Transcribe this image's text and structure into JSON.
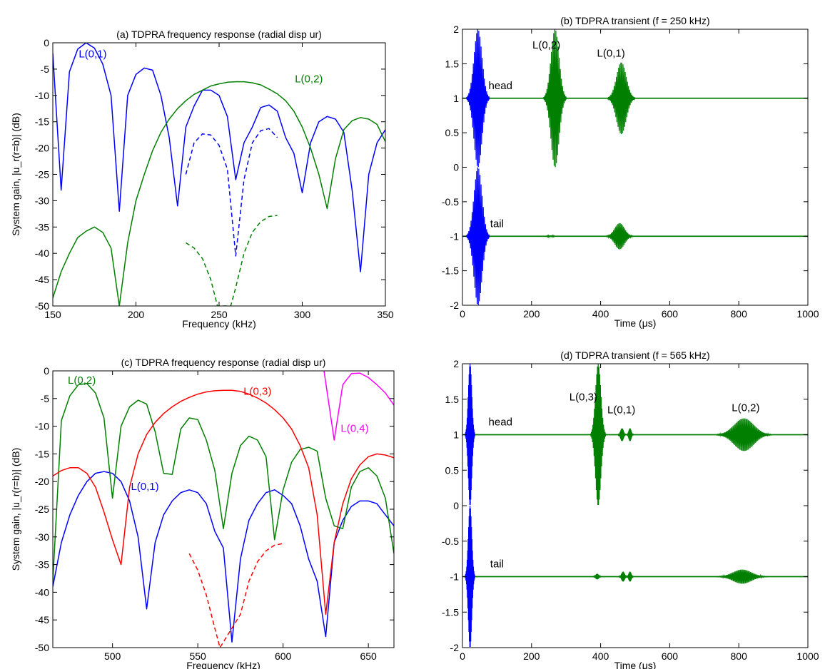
{
  "figure": {
    "background": "#ffffff"
  },
  "chart_data": [
    {
      "id": "a",
      "type": "line",
      "title": "(a) TDPRA frequency response (radial disp ur)",
      "xlabel": "Frequency (kHz)",
      "ylabel": "System gain, |u_r(r=b)| (dB)",
      "xlim": [
        150,
        350
      ],
      "ylim": [
        -50,
        0
      ],
      "xticks": [
        150,
        200,
        250,
        300,
        350
      ],
      "yticks": [
        -50,
        -45,
        -40,
        -35,
        -30,
        -25,
        -20,
        -15,
        -10,
        -5,
        0
      ],
      "grid": false,
      "series": [
        {
          "name": "L(0,1)",
          "color": "#0000ff",
          "dash": false,
          "x": [
            150,
            155,
            160,
            165,
            170,
            175,
            180,
            185,
            190,
            195,
            200,
            205,
            210,
            215,
            220,
            225,
            230,
            235,
            240,
            245,
            250,
            255,
            260,
            265,
            270,
            275,
            280,
            285,
            290,
            295,
            300,
            305,
            310,
            315,
            320,
            325,
            330,
            335,
            340,
            345,
            350
          ],
          "y": [
            -2,
            -28,
            -5.5,
            -1.2,
            0,
            -1,
            -4,
            -10,
            -32,
            -10,
            -6,
            -4.8,
            -5.2,
            -10,
            -18,
            -31,
            -16,
            -12,
            -9,
            -9,
            -10,
            -14,
            -26,
            -19,
            -16,
            -12.3,
            -11.8,
            -13,
            -18,
            -21,
            -28.5,
            -19,
            -15,
            -14,
            -14.5,
            -17,
            -28,
            -43.5,
            -25,
            -19,
            -16.5
          ]
        },
        {
          "name": "L(0,2)",
          "color": "#007f00",
          "dash": false,
          "x": [
            150,
            155,
            160,
            165,
            170,
            175,
            180,
            185,
            190,
            195,
            200,
            205,
            210,
            215,
            220,
            225,
            230,
            235,
            240,
            245,
            250,
            255,
            260,
            265,
            270,
            275,
            280,
            285,
            290,
            295,
            300,
            305,
            310,
            315,
            320,
            325,
            330,
            335,
            340,
            345,
            350
          ],
          "y": [
            -48.5,
            -43.5,
            -40,
            -37,
            -35.8,
            -35,
            -36,
            -39,
            -50,
            -38,
            -30,
            -25,
            -20.5,
            -17,
            -14.5,
            -12.5,
            -11,
            -9.8,
            -9,
            -8.2,
            -7.8,
            -7.5,
            -7.4,
            -7.4,
            -7.6,
            -8,
            -8.8,
            -9.7,
            -11,
            -13,
            -16,
            -20,
            -25,
            -31.5,
            -22,
            -16.5,
            -14.8,
            -14.2,
            -14.5,
            -15.5,
            -18.8
          ]
        },
        {
          "name": "",
          "color": "#0000ff",
          "dash": true,
          "x": [
            230,
            235,
            240,
            245,
            250,
            255,
            260,
            265,
            270,
            275,
            280,
            285
          ],
          "y": [
            -25,
            -19,
            -17.3,
            -17.5,
            -19.5,
            -24,
            -40.5,
            -26,
            -19,
            -16.7,
            -16.3,
            -18
          ]
        },
        {
          "name": "",
          "color": "#007f00",
          "dash": true,
          "x": [
            230,
            235,
            240,
            245,
            249,
            253,
            257,
            260,
            265,
            270,
            275,
            280,
            285
          ],
          "y": [
            -38,
            -39,
            -41,
            -45,
            -50,
            -50,
            -50,
            -46.5,
            -40,
            -36,
            -34,
            -33,
            -32.8
          ]
        }
      ],
      "annotations": [
        {
          "text": "L(0,1)",
          "x": 174,
          "y": -2.8,
          "color": "#0000ff"
        },
        {
          "text": "L(0,2)",
          "x": 304,
          "y": -7.5,
          "color": "#007f00"
        }
      ]
    },
    {
      "id": "b",
      "type": "line",
      "title": "(b) TDPRA transient (f = 250 kHz)",
      "xlabel": "Time (μs)",
      "ylabel": "",
      "xlim": [
        0,
        1000
      ],
      "ylim": [
        -2,
        2
      ],
      "xticks": [
        0,
        200,
        400,
        600,
        800,
        1000
      ],
      "yticks": [
        -2,
        -1.5,
        -1,
        -0.5,
        0,
        0.5,
        1,
        1.5,
        2
      ],
      "grid": false,
      "baselines": [
        {
          "name": "head",
          "level": 1
        },
        {
          "name": "tail",
          "level": -1
        }
      ],
      "packets": [
        {
          "trace": "head",
          "color": "#0000ff",
          "center": 45,
          "halfwidth": 33,
          "amplitude": 1.0
        },
        {
          "trace": "head",
          "color": "#007f00",
          "center": 268,
          "halfwidth": 33,
          "amplitude": 1.0
        },
        {
          "trace": "head",
          "color": "#007f00",
          "center": 460,
          "halfwidth": 40,
          "amplitude": 0.52
        },
        {
          "trace": "tail",
          "color": "#0000ff",
          "center": 45,
          "halfwidth": 33,
          "amplitude": 1.0
        },
        {
          "trace": "tail",
          "color": "#007f00",
          "center": 255,
          "halfwidth": 20,
          "amplitude": 0.012
        },
        {
          "trace": "tail",
          "color": "#007f00",
          "center": 455,
          "halfwidth": 40,
          "amplitude": 0.19
        }
      ],
      "annotations": [
        {
          "text": "L(0,2)",
          "x": 243,
          "y": 1.72,
          "color": "#000000"
        },
        {
          "text": "L(0,1)",
          "x": 430,
          "y": 1.6,
          "color": "#000000"
        },
        {
          "text": "head",
          "x": 110,
          "y": 1.13,
          "color": "#000000"
        },
        {
          "text": "tail",
          "x": 100,
          "y": -0.87,
          "color": "#000000"
        }
      ]
    },
    {
      "id": "c",
      "type": "line",
      "title": "(c) TDPRA frequency response (radial disp ur)",
      "xlabel": "Frequency (kHz)",
      "ylabel": "System gain, |u_r(r=b)| (dB)",
      "xlim": [
        465,
        665
      ],
      "ylim": [
        -50,
        0
      ],
      "xticks": [
        500,
        550,
        600,
        650
      ],
      "yticks": [
        -50,
        -45,
        -40,
        -35,
        -30,
        -25,
        -20,
        -15,
        -10,
        -5,
        0
      ],
      "grid": false,
      "series": [
        {
          "name": "L(0,1)",
          "color": "#0000ff",
          "dash": false,
          "x": [
            465,
            470,
            475,
            480,
            485,
            490,
            495,
            500,
            505,
            510,
            515,
            520,
            525,
            530,
            535,
            540,
            545,
            550,
            555,
            560,
            565,
            570,
            575,
            580,
            585,
            590,
            595,
            600,
            605,
            610,
            615,
            620,
            625,
            630,
            635,
            640,
            645,
            650,
            655,
            660,
            665
          ],
          "y": [
            -39,
            -31,
            -26,
            -22.5,
            -20,
            -18.5,
            -18.2,
            -18.5,
            -20,
            -23.5,
            -30,
            -43,
            -31,
            -26,
            -23.5,
            -22,
            -21.5,
            -22,
            -24,
            -29,
            -32,
            -49,
            -34,
            -27,
            -24,
            -22,
            -21.5,
            -22.5,
            -24,
            -28,
            -34,
            -38,
            -48,
            -31,
            -27,
            -24.5,
            -23.5,
            -23.5,
            -24,
            -26,
            -28
          ]
        },
        {
          "name": "L(0,2)",
          "color": "#007f00",
          "dash": false,
          "x": [
            465,
            470,
            475,
            480,
            485,
            490,
            495,
            500,
            505,
            510,
            515,
            520,
            525,
            530,
            535,
            540,
            545,
            550,
            555,
            560,
            565,
            570,
            575,
            580,
            585,
            590,
            595,
            600,
            605,
            610,
            615,
            620,
            625,
            630,
            635,
            640,
            645,
            650,
            655,
            660,
            665
          ],
          "y": [
            -38,
            -9,
            -4.5,
            -2.5,
            -2.3,
            -4,
            -8.5,
            -23,
            -10,
            -6.5,
            -5.3,
            -6,
            -11,
            -18.5,
            -18.7,
            -10.5,
            -8.5,
            -8.8,
            -12.5,
            -18,
            -28.5,
            -18.5,
            -13.5,
            -11.8,
            -12.5,
            -15.5,
            -30.5,
            -21.5,
            -16.5,
            -14.2,
            -13.8,
            -14.5,
            -23,
            -28,
            -28.5,
            -21,
            -18.2,
            -17.5,
            -19,
            -23,
            -33
          ]
        },
        {
          "name": "L(0,3)",
          "color": "#ff0000",
          "dash": false,
          "x": [
            465,
            470,
            475,
            480,
            485,
            490,
            495,
            500,
            505,
            510,
            515,
            520,
            525,
            530,
            535,
            540,
            545,
            550,
            555,
            560,
            565,
            570,
            575,
            580,
            585,
            590,
            595,
            600,
            605,
            610,
            615,
            620,
            625,
            630,
            635,
            640,
            645,
            650,
            655,
            660,
            665
          ],
          "y": [
            -19,
            -18,
            -17.5,
            -17.5,
            -18.5,
            -21,
            -25.5,
            -30.5,
            -35,
            -21,
            -15,
            -11.5,
            -9.3,
            -7.7,
            -6.5,
            -5.5,
            -4.8,
            -4.2,
            -3.8,
            -3.6,
            -3.5,
            -3.5,
            -3.7,
            -4.2,
            -4.9,
            -5.8,
            -7,
            -8.5,
            -10.5,
            -13.5,
            -17.5,
            -26,
            -44,
            -31,
            -24,
            -19.5,
            -17,
            -15.5,
            -15,
            -15.2,
            -15.7
          ]
        },
        {
          "name": "L(0,4)",
          "color": "#ff00ff",
          "dash": false,
          "x": [
            624,
            630,
            635,
            640,
            645,
            650,
            655,
            660,
            665
          ],
          "y": [
            0,
            -12.5,
            -2.5,
            -0.5,
            -0.4,
            -1.2,
            -2.5,
            -4,
            -6.2
          ]
        },
        {
          "name": "",
          "color": "#ff0000",
          "dash": true,
          "x": [
            545,
            550,
            555,
            560,
            563,
            575,
            580,
            585,
            590,
            595,
            600
          ],
          "y": [
            -33,
            -36,
            -40.5,
            -46.5,
            -50,
            -44,
            -38,
            -34.5,
            -32.5,
            -31.5,
            -31.2
          ]
        }
      ],
      "annotations": [
        {
          "text": "L(0,2)",
          "x": 482,
          "y": -2.3,
          "color": "#007f00"
        },
        {
          "text": "L(0,3)",
          "x": 585,
          "y": -4.3,
          "color": "#ff0000"
        },
        {
          "text": "L(0,4)",
          "x": 642,
          "y": -11,
          "color": "#ff00ff"
        },
        {
          "text": "L(0,1)",
          "x": 519,
          "y": -21.5,
          "color": "#0000ff"
        }
      ]
    },
    {
      "id": "d",
      "type": "line",
      "title": "(d) TDPRA transient (f = 565 kHz)",
      "xlabel": "Time (μs)",
      "ylabel": "",
      "xlim": [
        0,
        1000
      ],
      "ylim": [
        -2,
        2
      ],
      "xticks": [
        0,
        200,
        400,
        600,
        800,
        1000
      ],
      "yticks": [
        -2,
        -1.5,
        -1,
        -0.5,
        0,
        0.5,
        1,
        1.5,
        2
      ],
      "grid": false,
      "baselines": [
        {
          "name": "head",
          "level": 1
        },
        {
          "name": "tail",
          "level": -1
        }
      ],
      "packets": [
        {
          "trace": "head",
          "color": "#0000ff",
          "center": 22,
          "halfwidth": 14,
          "amplitude": 1.0
        },
        {
          "trace": "head",
          "color": "#007f00",
          "center": 393,
          "halfwidth": 22,
          "amplitude": 1.0
        },
        {
          "trace": "head",
          "color": "#007f00",
          "center": 462,
          "halfwidth": 12,
          "amplitude": 0.09
        },
        {
          "trace": "head",
          "color": "#007f00",
          "center": 485,
          "halfwidth": 10,
          "amplitude": 0.09
        },
        {
          "trace": "head",
          "color": "#007f00",
          "center": 815,
          "halfwidth": 80,
          "amplitude": 0.23
        },
        {
          "trace": "tail",
          "color": "#0000ff",
          "center": 22,
          "halfwidth": 14,
          "amplitude": 1.0
        },
        {
          "trace": "tail",
          "color": "#007f00",
          "center": 390,
          "halfwidth": 12,
          "amplitude": 0.04
        },
        {
          "trace": "tail",
          "color": "#007f00",
          "center": 465,
          "halfwidth": 12,
          "amplitude": 0.07
        },
        {
          "trace": "tail",
          "color": "#007f00",
          "center": 485,
          "halfwidth": 10,
          "amplitude": 0.07
        },
        {
          "trace": "tail",
          "color": "#007f00",
          "center": 810,
          "halfwidth": 75,
          "amplitude": 0.1
        }
      ],
      "annotations": [
        {
          "text": "L(0,3)",
          "x": 350,
          "y": 1.48,
          "color": "#000000"
        },
        {
          "text": "L(0,1)",
          "x": 460,
          "y": 1.3,
          "color": "#000000"
        },
        {
          "text": "L(0,2)",
          "x": 820,
          "y": 1.33,
          "color": "#000000"
        },
        {
          "text": "head",
          "x": 110,
          "y": 1.13,
          "color": "#000000"
        },
        {
          "text": "tail",
          "x": 100,
          "y": -0.87,
          "color": "#000000"
        }
      ]
    }
  ]
}
